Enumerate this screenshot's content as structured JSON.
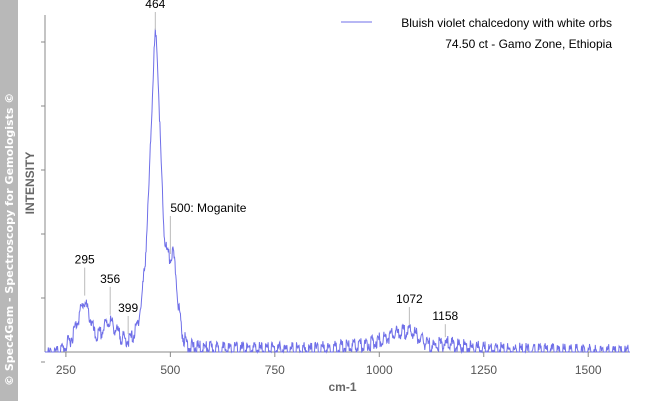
{
  "side_banner": "© Spec4Gem - Spectroscopy for Gemologists ©",
  "chart_data": {
    "type": "line",
    "xlabel": "cm-1",
    "ylabel": "INTENSITY",
    "xlim": [
      200,
      1600
    ],
    "ylim": [
      0,
      1
    ],
    "xticks": [
      250,
      500,
      750,
      1000,
      1250,
      1500
    ],
    "y_tick_labels_shown": false,
    "grid": false,
    "legend": {
      "position": "top-right",
      "line1": "Bluish violet chalcedony with white orbs",
      "line2": "74.50 ct  - Gamo Zone, Ethiopia"
    },
    "series": [
      {
        "name": "Bluish violet chalcedony with white orbs",
        "color": "#6f6fe8",
        "x": [
          200,
          230,
          250,
          265,
          280,
          290,
          295,
          300,
          310,
          320,
          335,
          345,
          356,
          365,
          375,
          390,
          399,
          410,
          420,
          430,
          440,
          448,
          455,
          460,
          464,
          468,
          472,
          478,
          485,
          492,
          500,
          505,
          512,
          520,
          530,
          545,
          560,
          600,
          650,
          700,
          750,
          800,
          850,
          900,
          950,
          980,
          1000,
          1020,
          1040,
          1060,
          1072,
          1085,
          1100,
          1115,
          1130,
          1145,
          1158,
          1175,
          1200,
          1220,
          1240,
          1270,
          1300,
          1350,
          1400,
          1450,
          1500,
          1550,
          1600
        ],
        "y": [
          0.0,
          0.01,
          0.03,
          0.06,
          0.12,
          0.16,
          0.17,
          0.15,
          0.11,
          0.06,
          0.07,
          0.1,
          0.11,
          0.09,
          0.07,
          0.05,
          0.05,
          0.06,
          0.09,
          0.16,
          0.3,
          0.5,
          0.75,
          0.92,
          1.0,
          0.96,
          0.82,
          0.6,
          0.38,
          0.32,
          0.3,
          0.33,
          0.27,
          0.15,
          0.06,
          0.03,
          0.025,
          0.022,
          0.02,
          0.02,
          0.02,
          0.018,
          0.02,
          0.025,
          0.03,
          0.04,
          0.05,
          0.06,
          0.07,
          0.075,
          0.078,
          0.07,
          0.05,
          0.035,
          0.03,
          0.035,
          0.04,
          0.035,
          0.028,
          0.025,
          0.022,
          0.02,
          0.018,
          0.016,
          0.015,
          0.014,
          0.013,
          0.012,
          0.012
        ]
      }
    ],
    "annotations": [
      {
        "text": "295",
        "x": 295
      },
      {
        "text": "356",
        "x": 356
      },
      {
        "text": "399",
        "x": 399
      },
      {
        "text": "464",
        "x": 464
      },
      {
        "text": "500: Moganite",
        "x": 500
      },
      {
        "text": "1072",
        "x": 1072
      },
      {
        "text": "1158",
        "x": 1158
      }
    ]
  }
}
